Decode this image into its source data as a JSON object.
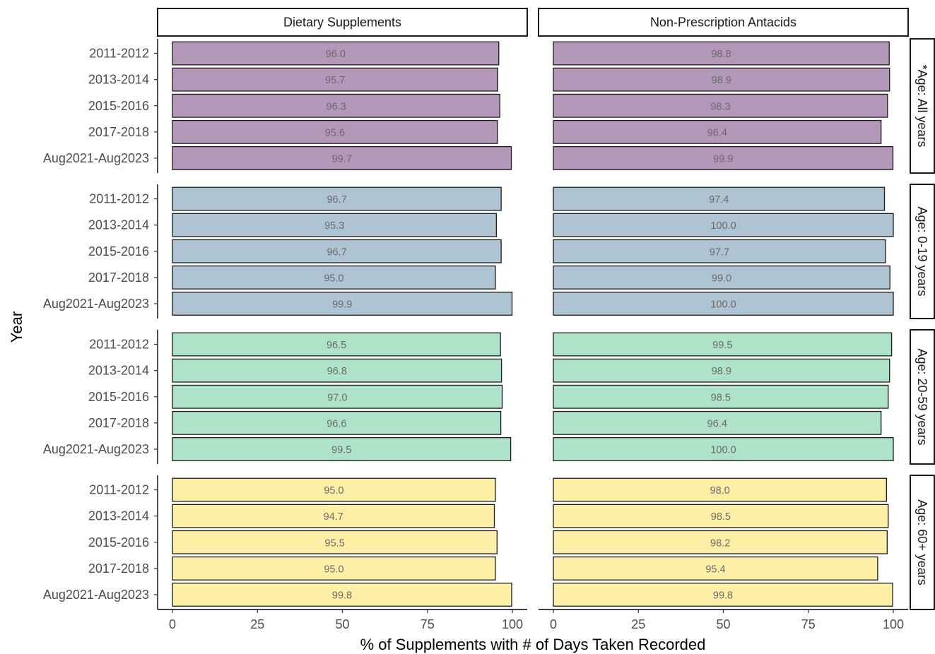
{
  "chart_data": {
    "type": "bar",
    "orientation": "horizontal",
    "xlabel": "% of Supplements with # of Days Taken Recorded",
    "ylabel": "Year",
    "xlim": [
      0,
      100
    ],
    "x_ticks": [
      0,
      25,
      50,
      75,
      100
    ],
    "categories": [
      "2011-2012",
      "2013-2014",
      "2015-2016",
      "2017-2018",
      "Aug2021-Aug2023"
    ],
    "columns": [
      "Dietary Supplements",
      "Non-Prescription Antacids"
    ],
    "grid": false,
    "rows": [
      {
        "label": "*Age: All years",
        "color": "#b498ba",
        "values": [
          [
            96.0,
            95.7,
            96.3,
            95.6,
            99.7
          ],
          [
            98.8,
            98.9,
            98.3,
            96.4,
            99.9
          ]
        ],
        "value_labels": [
          [
            "96.0",
            "95.7",
            "96.3",
            "95.6",
            "99.7"
          ],
          [
            "98.8",
            "98.9",
            "98.3",
            "96.4",
            "99.9"
          ]
        ]
      },
      {
        "label": "Age: 0-19 years",
        "color": "#aec4d2",
        "values": [
          [
            96.7,
            95.3,
            96.7,
            95.0,
            99.9
          ],
          [
            97.4,
            100.0,
            97.7,
            99.0,
            100.0
          ]
        ],
        "value_labels": [
          [
            "96.7",
            "95.3",
            "96.7",
            "95.0",
            "99.9"
          ],
          [
            "97.4",
            "100.0",
            "97.7",
            "99.0",
            "100.0"
          ]
        ]
      },
      {
        "label": "Age: 20-59 years",
        "color": "#aee2c9",
        "values": [
          [
            96.5,
            96.8,
            97.0,
            96.6,
            99.5
          ],
          [
            99.5,
            98.9,
            98.5,
            96.4,
            100.0
          ]
        ],
        "value_labels": [
          [
            "96.5",
            "96.8",
            "97.0",
            "96.6",
            "99.5"
          ],
          [
            "99.5",
            "98.9",
            "98.5",
            "96.4",
            "100.0"
          ]
        ]
      },
      {
        "label": "Age: 60+ years",
        "color": "#fdf0a6",
        "values": [
          [
            95.0,
            94.7,
            95.5,
            95.0,
            99.8
          ],
          [
            98.0,
            98.5,
            98.2,
            95.4,
            99.8
          ]
        ],
        "value_labels": [
          [
            "95.0",
            "94.7",
            "95.5",
            "95.0",
            "99.8"
          ],
          [
            "98.0",
            "98.5",
            "98.2",
            "95.4",
            "99.8"
          ]
        ]
      }
    ]
  }
}
